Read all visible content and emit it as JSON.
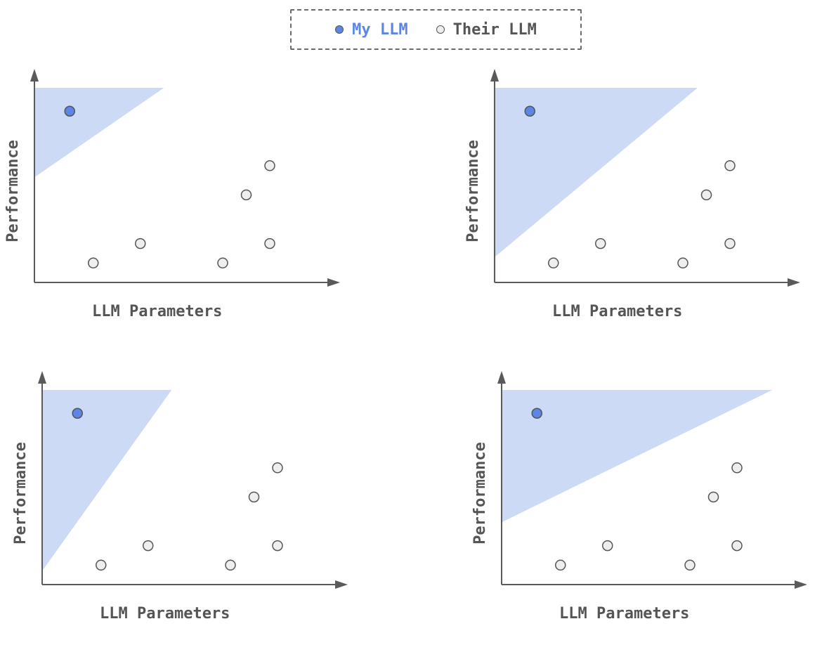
{
  "legend": {
    "entries": [
      {
        "label": "My LLM",
        "marker_fill": "#5b86e5",
        "text_color": "#5b86e5"
      },
      {
        "label": "Their LLM",
        "marker_fill": "#eeeeee",
        "text_color": "#555555"
      }
    ]
  },
  "colors": {
    "axis": "#5a5a5a",
    "region": "#ccdaf5",
    "my_llm": "#5b86e5",
    "their_llm": "#eeeeee",
    "marker_edge": "#555555",
    "label": "#555555"
  },
  "chart_data": [
    {
      "type": "scatter",
      "xlabel": "LLM Parameters",
      "ylabel": "Performance",
      "xlim": [
        0,
        10
      ],
      "ylim": [
        0,
        10
      ],
      "grid": false,
      "legend": "top-center",
      "shaded_region": [
        [
          0,
          10
        ],
        [
          4.4,
          10
        ],
        [
          0,
          5.4
        ]
      ],
      "series": [
        {
          "name": "My LLM",
          "points": [
            [
              1.2,
              8.8
            ]
          ]
        },
        {
          "name": "Their LLM",
          "points": [
            [
              2,
              1
            ],
            [
              3.6,
              2
            ],
            [
              7.2,
              4.5
            ],
            [
              8,
              6
            ],
            [
              6.4,
              1
            ],
            [
              8,
              2
            ]
          ]
        }
      ]
    },
    {
      "type": "scatter",
      "xlabel": "LLM Parameters",
      "ylabel": "Performance",
      "xlim": [
        0,
        10
      ],
      "ylim": [
        0,
        10
      ],
      "grid": false,
      "legend": "top-center",
      "shaded_region": [
        [
          0,
          10
        ],
        [
          6.9,
          10
        ],
        [
          0,
          1.3
        ]
      ],
      "series": [
        {
          "name": "My LLM",
          "points": [
            [
              1.2,
              8.8
            ]
          ]
        },
        {
          "name": "Their LLM",
          "points": [
            [
              2,
              1
            ],
            [
              3.6,
              2
            ],
            [
              7.2,
              4.5
            ],
            [
              8,
              6
            ],
            [
              6.4,
              1
            ],
            [
              8,
              2
            ]
          ]
        }
      ]
    },
    {
      "type": "scatter",
      "xlabel": "LLM Parameters",
      "ylabel": "Performance",
      "xlim": [
        0,
        10
      ],
      "ylim": [
        0,
        10
      ],
      "grid": false,
      "legend": "top-center",
      "shaded_region": [
        [
          0,
          10
        ],
        [
          4.4,
          10
        ],
        [
          0,
          0.7
        ]
      ],
      "series": [
        {
          "name": "My LLM",
          "points": [
            [
              1.2,
              8.8
            ]
          ]
        },
        {
          "name": "Their LLM",
          "points": [
            [
              2,
              1
            ],
            [
              3.6,
              2
            ],
            [
              7.2,
              4.5
            ],
            [
              8,
              6
            ],
            [
              6.4,
              1
            ],
            [
              8,
              2
            ]
          ]
        }
      ]
    },
    {
      "type": "scatter",
      "xlabel": "LLM Parameters",
      "ylabel": "Performance",
      "xlim": [
        0,
        10
      ],
      "ylim": [
        0,
        10
      ],
      "grid": false,
      "legend": "top-center",
      "shaded_region": [
        [
          0,
          10
        ],
        [
          9.2,
          10
        ],
        [
          0,
          3.2
        ]
      ],
      "series": [
        {
          "name": "My LLM",
          "points": [
            [
              1.2,
              8.8
            ]
          ]
        },
        {
          "name": "Their LLM",
          "points": [
            [
              2,
              1
            ],
            [
              3.6,
              2
            ],
            [
              7.2,
              4.5
            ],
            [
              8,
              6
            ],
            [
              6.4,
              1
            ],
            [
              8,
              2
            ]
          ]
        }
      ]
    }
  ]
}
